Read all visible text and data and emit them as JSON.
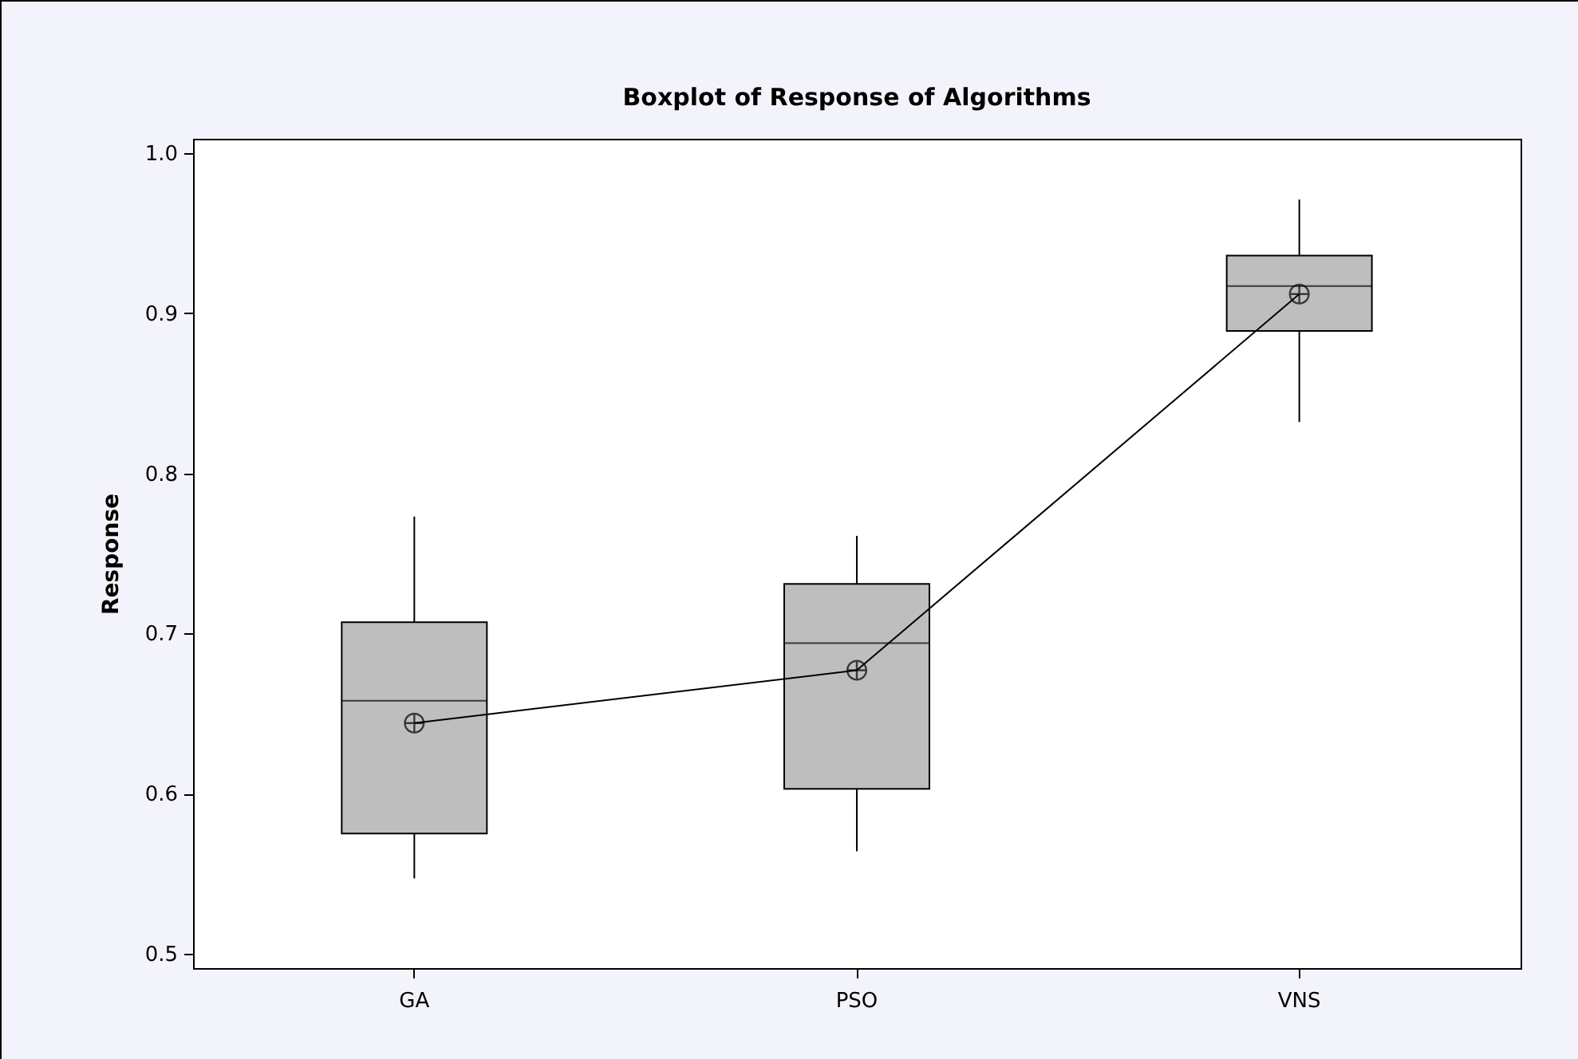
{
  "chart_data": {
    "type": "box",
    "title": "Boxplot of Response of Algorithms",
    "ylabel": "Response",
    "categories": [
      "GA",
      "PSO",
      "VNS"
    ],
    "ylim": [
      0.491,
      1.009
    ],
    "yticks": [
      0.5,
      0.6,
      0.7,
      0.8,
      0.9,
      {
        "value": 1.0,
        "label": "1.0"
      }
    ],
    "grid": false,
    "series": [
      {
        "type": "box",
        "color": "#bebebe",
        "boxes": [
          {
            "low": 0.547,
            "q1": 0.575,
            "median": 0.658,
            "q3": 0.707,
            "high": 0.773
          },
          {
            "low": 0.564,
            "q1": 0.603,
            "median": 0.694,
            "q3": 0.731,
            "high": 0.761
          },
          {
            "low": 0.832,
            "q1": 0.889,
            "median": 0.917,
            "q3": 0.936,
            "high": 0.971
          }
        ]
      },
      {
        "type": "line",
        "color": "#000000",
        "marker": "cross",
        "values": [
          0.644,
          0.677,
          0.912
        ]
      }
    ]
  }
}
